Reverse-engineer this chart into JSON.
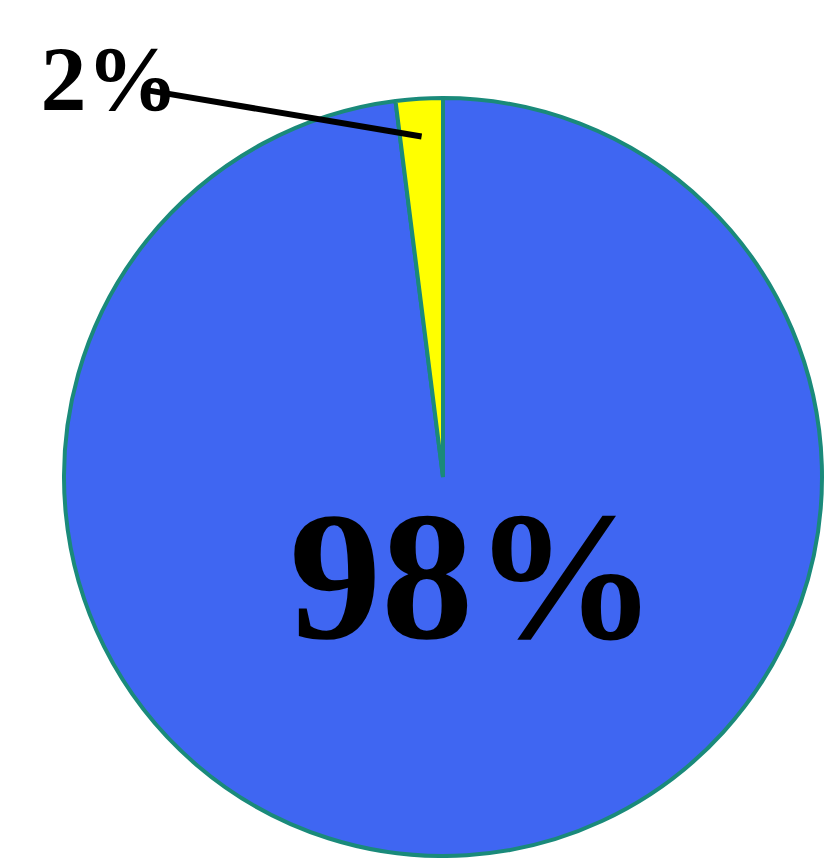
{
  "chart_data": {
    "type": "pie",
    "categories": [
      null,
      null
    ],
    "values": [
      98,
      2
    ],
    "colors": [
      "#3f66f2",
      "#ffff00"
    ],
    "value_labels": [
      "98%",
      "2%"
    ]
  }
}
